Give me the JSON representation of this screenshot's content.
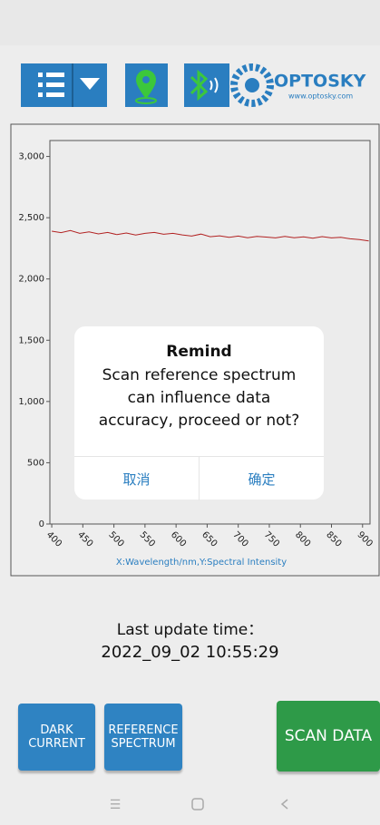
{
  "header": {
    "logo": {
      "name": "OPTOSKY",
      "url": "www.optosky.com"
    }
  },
  "chart_data": {
    "type": "line",
    "x": [
      400,
      415,
      430,
      445,
      460,
      475,
      490,
      505,
      520,
      535,
      550,
      565,
      580,
      595,
      610,
      625,
      640,
      655,
      670,
      685,
      700,
      715,
      730,
      745,
      760,
      775,
      790,
      805,
      820,
      835,
      850,
      865,
      880,
      895,
      910
    ],
    "values": [
      2390,
      2378,
      2395,
      2372,
      2385,
      2368,
      2380,
      2362,
      2375,
      2358,
      2372,
      2380,
      2365,
      2372,
      2360,
      2350,
      2366,
      2345,
      2352,
      2340,
      2350,
      2336,
      2348,
      2342,
      2335,
      2348,
      2336,
      2344,
      2332,
      2346,
      2335,
      2340,
      2328,
      2322,
      2310
    ],
    "color": "#b22222",
    "xlim": [
      397,
      912
    ],
    "xticks": [
      400,
      450,
      500,
      550,
      600,
      650,
      700,
      750,
      800,
      850,
      900
    ],
    "ylim": [
      0,
      3130
    ],
    "yticks": [
      0,
      500,
      {
        "value": 1000,
        "label": "1,000"
      },
      {
        "value": 1500,
        "label": "1,500"
      },
      {
        "value": 2000,
        "label": "2,000"
      },
      {
        "value": 2500,
        "label": "2,500"
      },
      {
        "value": 3000,
        "label": "3,000"
      }
    ],
    "axis_label": "X:Wavelength/nm,Y:Spectral Intensity"
  },
  "dialog": {
    "title": "Remind",
    "message": [
      "Scan reference spectrum",
      "can influence data",
      "accuracy, proceed or not?"
    ],
    "cancel": "取消",
    "confirm": "确定"
  },
  "status": {
    "label": "Last update time：",
    "time": "2022_09_02 10:55:29"
  },
  "buttons": {
    "dark_current": "DARK CURRENT",
    "reference_spectrum": "REFERENCE SPECTRUM",
    "scan_data": "SCAN DATA"
  }
}
